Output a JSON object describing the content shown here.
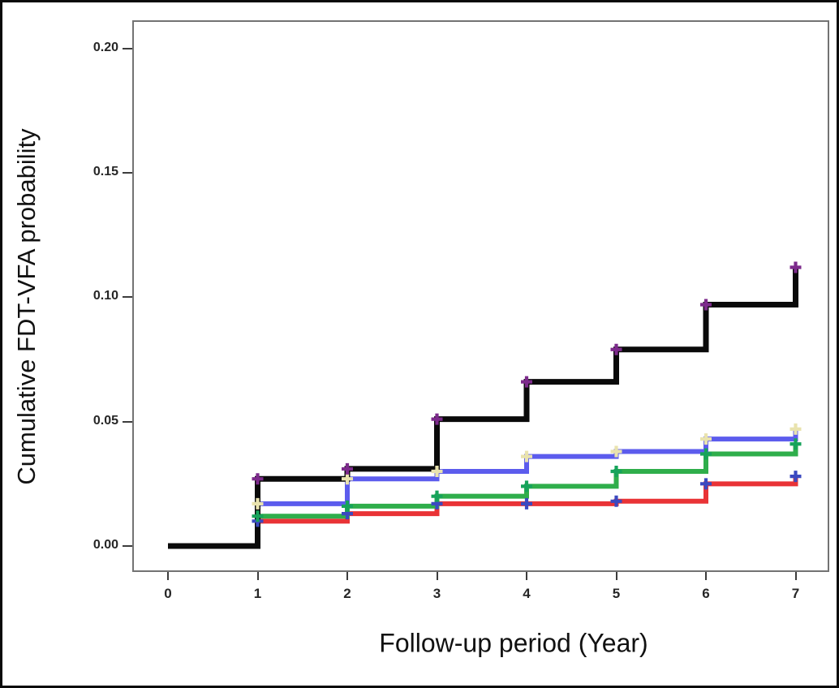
{
  "chart_data": {
    "type": "line",
    "subtype": "cumulative-incidence-step-plot",
    "title": "",
    "xlabel": "Follow-up period (Year)",
    "ylabel": "Cumulative FDT-VFA probability",
    "x_years": [
      0,
      1,
      2,
      3,
      4,
      5,
      6,
      7
    ],
    "x_tick_labels": [
      "0",
      "1",
      "2",
      "3",
      "4",
      "5",
      "6",
      "7"
    ],
    "y_tick_values": [
      0.0,
      0.05,
      0.1,
      0.15,
      0.2
    ],
    "y_tick_labels": [
      "0.00",
      "0.05",
      "0.10",
      "0.15",
      "0.20"
    ],
    "ylim": [
      0,
      0.2
    ],
    "xlim": [
      -0.4,
      7.4
    ],
    "grid": false,
    "legend": "none",
    "frame_color": "#737373",
    "series": [
      {
        "name": "black",
        "color": "#0a0a0a",
        "marker": "plus",
        "marker_color": "#7c2a8b",
        "values": [
          0,
          0.027,
          0.031,
          0.051,
          0.066,
          0.079,
          0.097,
          0.112
        ],
        "marker_years": [
          1,
          2,
          3,
          4,
          5,
          6,
          7
        ]
      },
      {
        "name": "blue",
        "color": "#5c5ced",
        "marker": "plus",
        "marker_color": "#e9e3ae",
        "values": [
          0,
          0.017,
          0.027,
          0.03,
          0.036,
          0.038,
          0.043,
          0.047
        ],
        "marker_years": [
          1,
          2,
          3,
          4,
          5,
          6,
          7
        ]
      },
      {
        "name": "green",
        "color": "#2fae4b",
        "marker": "plus",
        "marker_color": "#16a35b",
        "values": [
          0,
          0.012,
          0.016,
          0.02,
          0.024,
          0.03,
          0.037,
          0.041
        ],
        "marker_years": [
          1,
          2,
          3,
          4,
          5,
          6,
          7
        ]
      },
      {
        "name": "red",
        "color": "#e93336",
        "marker": "plus",
        "marker_color": "#3b49c0",
        "values": [
          0,
          0.01,
          0.013,
          0.017,
          0.017,
          0.018,
          0.025,
          0.028
        ],
        "marker_years": [
          1,
          2,
          3,
          4,
          5,
          6,
          7
        ]
      }
    ]
  }
}
